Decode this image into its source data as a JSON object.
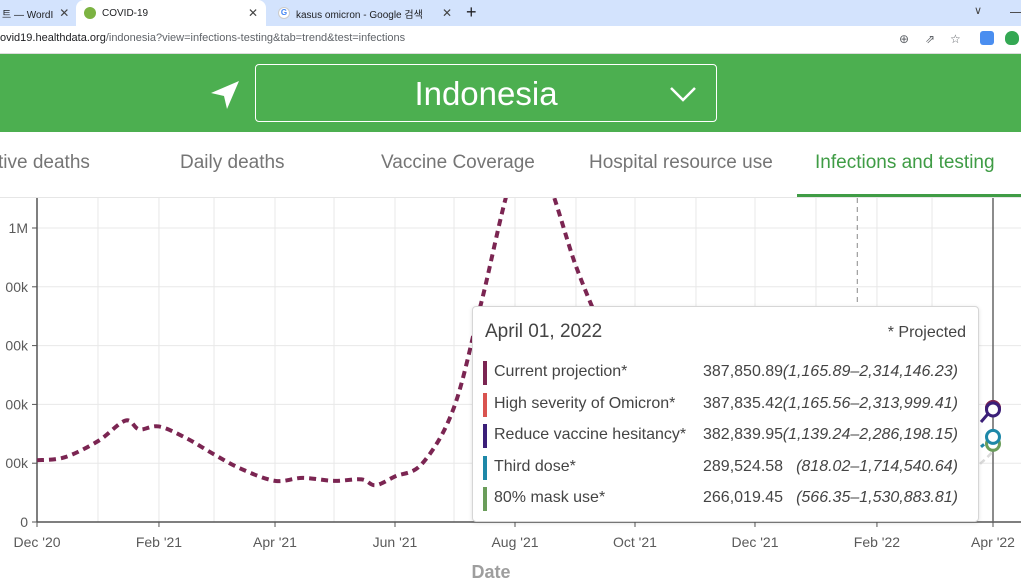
{
  "browser": {
    "tabs": [
      {
        "label": "트 — WordI",
        "active": false
      },
      {
        "label": "COVID-19",
        "active": true
      },
      {
        "label": "kasus omicron - Google 검색",
        "active": false
      }
    ],
    "url_main": "ovid19.healthdata.org",
    "url_path": "/indonesia?view=infections-testing&tab=trend&test=infections"
  },
  "header": {
    "country": "Indonesia",
    "locate_icon": "navigation-arrow-icon",
    "dropdown_icon": "chevron-down-icon"
  },
  "nav": {
    "tabs": [
      {
        "label": "tive deaths",
        "active": false
      },
      {
        "label": "Daily deaths",
        "active": false
      },
      {
        "label": "Vaccine Coverage",
        "active": false
      },
      {
        "label": "Hospital resource use",
        "active": false
      },
      {
        "label": "Infections and testing",
        "active": true
      }
    ]
  },
  "colors": {
    "green": "#4caf50",
    "series_current": "#7b2552",
    "series_omicron": "#d9534f",
    "series_vaccine": "#3b1f78",
    "series_third": "#1e88a8",
    "series_mask": "#6a9d5a"
  },
  "chart_data": {
    "type": "line",
    "xlabel": "Date",
    "ylabel": "",
    "x_ticks": [
      "Dec '20",
      "Feb '21",
      "Apr '21",
      "Jun '21",
      "Aug '21",
      "Oct '21",
      "Dec '21",
      "Feb '22",
      "Apr '22"
    ],
    "y_ticks": [
      "0",
      "00k",
      "00k",
      "00k",
      "00k",
      "1M"
    ],
    "ylim": [
      0,
      1200000
    ],
    "grid": true,
    "series": [
      {
        "name": "Current projection*",
        "style": "dashed",
        "points": [
          [
            "2020-12-01",
            210000
          ],
          [
            "2020-12-15",
            220000
          ],
          [
            "2021-01-01",
            275000
          ],
          [
            "2021-01-15",
            345000
          ],
          [
            "2021-01-22",
            315000
          ],
          [
            "2021-02-01",
            325000
          ],
          [
            "2021-02-15",
            285000
          ],
          [
            "2021-03-01",
            230000
          ],
          [
            "2021-03-15",
            180000
          ],
          [
            "2021-04-01",
            140000
          ],
          [
            "2021-04-15",
            150000
          ],
          [
            "2021-05-01",
            140000
          ],
          [
            "2021-05-15",
            145000
          ],
          [
            "2021-05-22",
            125000
          ],
          [
            "2021-06-01",
            155000
          ],
          [
            "2021-06-15",
            200000
          ],
          [
            "2021-07-01",
            390000
          ],
          [
            "2021-07-15",
            750000
          ],
          [
            "2021-08-01",
            1200000
          ],
          [
            "2021-08-15",
            1200000
          ],
          [
            "2021-09-01",
            870000
          ],
          [
            "2021-09-15",
            640000
          ]
        ]
      }
    ],
    "tooltip": {
      "date": "April 01, 2022",
      "note": "* Projected",
      "rows": [
        {
          "name": "Current projection*",
          "value": "387,850.89",
          "range": "(1,165.89–2,314,146.23)",
          "color": "#7b2552"
        },
        {
          "name": "High severity of Omicron*",
          "value": "387,835.42",
          "range": "(1,165.56–2,313,999.41)",
          "color": "#d9534f"
        },
        {
          "name": "Reduce vaccine hesitancy*",
          "value": "382,839.95",
          "range": "(1,139.24–2,286,198.15)",
          "color": "#3b1f78"
        },
        {
          "name": "Third dose*",
          "value": "289,524.58",
          "range": "(818.02–1,714,540.64)",
          "color": "#1e88a8"
        },
        {
          "name": "80% mask use*",
          "value": "266,019.45",
          "range": "(566.35–1,530,883.81)",
          "color": "#6a9d5a"
        }
      ]
    }
  }
}
